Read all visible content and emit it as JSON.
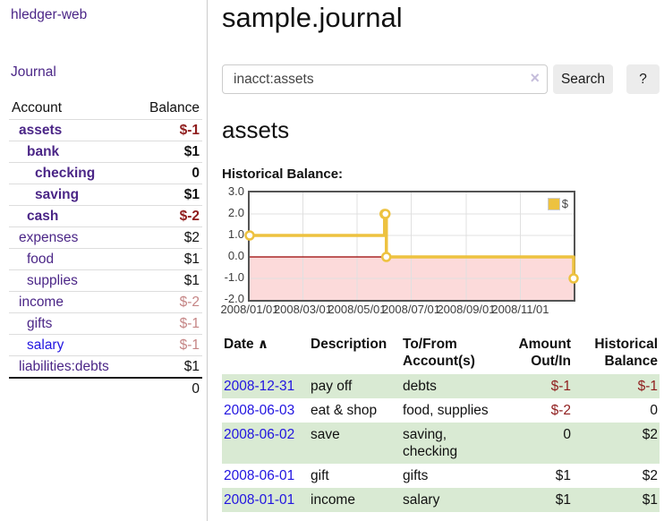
{
  "app": {
    "brand": "hledger-web",
    "nav_journal": "Journal"
  },
  "colors": {
    "link_purple": "#4b2687",
    "link_blue": "#2114e0",
    "negative_strong": "#8f1d1d",
    "negative_muted": "#c58585",
    "row_stripe_green": "#d9ead3",
    "series_yellow": "#edc240"
  },
  "sidebar": {
    "header": {
      "account": "Account",
      "balance": "Balance"
    },
    "accounts": [
      {
        "name": "assets",
        "depth": 1,
        "bold": true,
        "balance": "$-1",
        "balance_style": "neg-strong"
      },
      {
        "name": "bank",
        "depth": 2,
        "bold": true,
        "balance": "$1",
        "balance_style": "pos-strong"
      },
      {
        "name": "checking",
        "depth": 3,
        "bold": true,
        "balance": "0",
        "balance_style": "pos-strong"
      },
      {
        "name": "saving",
        "depth": 3,
        "bold": true,
        "balance": "$1",
        "balance_style": "pos-strong"
      },
      {
        "name": "cash",
        "depth": 2,
        "bold": true,
        "balance": "$-2",
        "balance_style": "neg-strong"
      },
      {
        "name": "expenses",
        "depth": 1,
        "bold": false,
        "balance": "$2",
        "balance_style": "pos"
      },
      {
        "name": "food",
        "depth": 2,
        "bold": false,
        "balance": "$1",
        "balance_style": "pos"
      },
      {
        "name": "supplies",
        "depth": 2,
        "bold": false,
        "balance": "$1",
        "balance_style": "pos"
      },
      {
        "name": "income",
        "depth": 1,
        "bold": false,
        "balance": "$-2",
        "balance_style": "neg-muted"
      },
      {
        "name": "gifts",
        "depth": 2,
        "bold": false,
        "balance": "$-1",
        "balance_style": "neg-muted"
      },
      {
        "name": "salary",
        "depth": 2,
        "bold": false,
        "link_style": "blue",
        "balance": "$-1",
        "balance_style": "neg-muted"
      },
      {
        "name": "liabilities:debts",
        "depth": 1,
        "bold": false,
        "balance": "$1",
        "balance_style": "pos"
      }
    ],
    "total": "0"
  },
  "main": {
    "title": "sample.journal",
    "search": {
      "value": "inacct:assets",
      "clear_icon": "×",
      "button": "Search",
      "help_button": "?"
    },
    "account_heading": "assets",
    "chart_label": "Historical Balance:"
  },
  "chart_data": {
    "type": "line",
    "step": true,
    "title": "Historical Balance",
    "series": [
      {
        "name": "$",
        "color": "#edc240",
        "points": [
          {
            "date": "2008-01-01",
            "day": 0,
            "value": 1
          },
          {
            "date": "2008-06-01",
            "day": 152,
            "value": 2
          },
          {
            "date": "2008-06-02",
            "day": 153,
            "value": 2
          },
          {
            "date": "2008-06-03",
            "day": 154,
            "value": 0
          },
          {
            "date": "2008-12-31",
            "day": 365,
            "value": -1
          }
        ]
      }
    ],
    "x_ticks": [
      {
        "label": "2008/01/01",
        "day": 0
      },
      {
        "label": "2008/03/01",
        "day": 60
      },
      {
        "label": "2008/05/01",
        "day": 121
      },
      {
        "label": "2008/07/01",
        "day": 182
      },
      {
        "label": "2008/09/01",
        "day": 244
      },
      {
        "label": "2008/11/01",
        "day": 305
      }
    ],
    "y_ticks": [
      "3.0",
      "2.0",
      "1.0",
      "0.0",
      "-1.0",
      "-2.0"
    ],
    "ylim": [
      -2,
      3
    ],
    "xlim_days": [
      0,
      365
    ],
    "grid": true,
    "legend": {
      "label": "$",
      "position": "top-right"
    },
    "colors": {
      "grid": "#e0e0e0",
      "border": "#545454",
      "negative_fill": "#fcdada",
      "zero_line": "#990000"
    }
  },
  "register": {
    "columns": [
      {
        "label": "Date",
        "sort_icon": "∧"
      },
      {
        "label": "Description"
      },
      {
        "label": "To/From\nAccount(s)"
      },
      {
        "label": "Amount\nOut/In"
      },
      {
        "label": "Historical\nBalance"
      }
    ],
    "rows": [
      {
        "date": "2008-12-31",
        "description": "pay off",
        "accounts": "debts",
        "amount": "$-1",
        "amount_neg": true,
        "balance": "$-1",
        "balance_neg": true
      },
      {
        "date": "2008-06-03",
        "description": "eat & shop",
        "accounts": "food, supplies",
        "amount": "$-2",
        "amount_neg": true,
        "balance": "0",
        "balance_neg": false
      },
      {
        "date": "2008-06-02",
        "description": "save",
        "accounts": "saving,\nchecking",
        "amount": "0",
        "amount_neg": false,
        "balance": "$2",
        "balance_neg": false
      },
      {
        "date": "2008-06-01",
        "description": "gift",
        "accounts": "gifts",
        "amount": "$1",
        "amount_neg": false,
        "balance": "$2",
        "balance_neg": false
      },
      {
        "date": "2008-01-01",
        "description": "income",
        "accounts": "salary",
        "amount": "$1",
        "amount_neg": false,
        "balance": "$1",
        "balance_neg": false
      }
    ]
  }
}
